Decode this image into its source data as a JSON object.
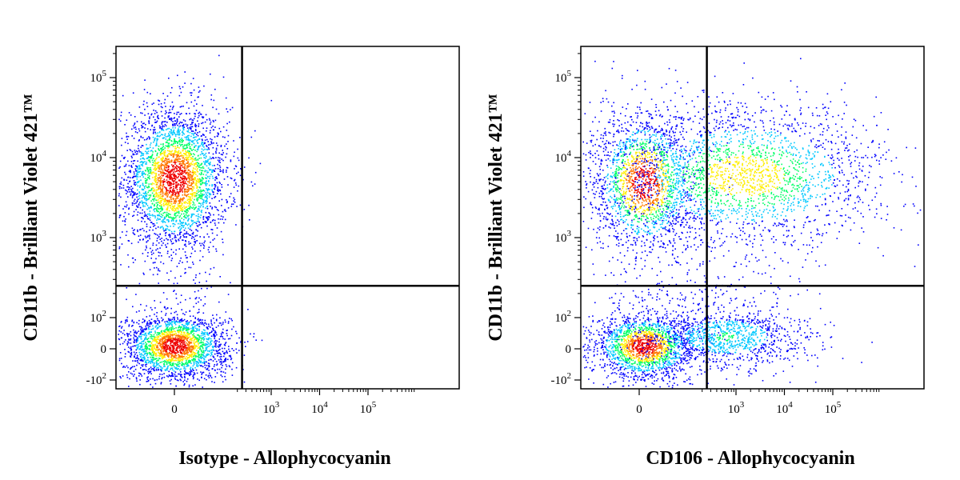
{
  "chart_data": [
    {
      "type": "scatter",
      "xlabel": "Isotype - Allophycocyanin",
      "ylabel": "CD11b - Brilliant Violet 421™",
      "x_scale": "biexponential",
      "y_scale": "biexponential",
      "xlim": [
        -150,
        160000
      ],
      "ylim": [
        -150,
        300000
      ],
      "x_ticks": [
        "0",
        "10^3",
        "10^4",
        "10^5"
      ],
      "y_ticks": [
        "-10^2",
        "0",
        "10^2",
        "10^3",
        "10^4",
        "10^5"
      ],
      "gate": {
        "x": 250,
        "y": 250
      },
      "grid": false,
      "populations": [
        {
          "name": "",
          "x_center": 0,
          "y_center": 5500,
          "count": 3200,
          "density": "high"
        },
        {
          "name": "",
          "x_center": 0,
          "y_center": 10,
          "count": 2400,
          "density": "high"
        }
      ],
      "color_scale": [
        "#0000ff",
        "#00c8ff",
        "#00ff66",
        "#ffee00",
        "#ff7700",
        "#ee0000"
      ]
    },
    {
      "type": "scatter",
      "xlabel": "CD106 - Allophycocyanin",
      "ylabel": "CD11b - Brilliant Violet 421™",
      "x_scale": "biexponential",
      "y_scale": "biexponential",
      "xlim": [
        -150,
        160000
      ],
      "ylim": [
        -150,
        300000
      ],
      "x_ticks": [
        "0",
        "10^3",
        "10^4",
        "10^5"
      ],
      "y_ticks": [
        "-10^2",
        "0",
        "10^2",
        "10^3",
        "10^4",
        "10^5"
      ],
      "gate": {
        "x": 250,
        "y": 250
      },
      "grid": false,
      "populations": [
        {
          "name": "",
          "x_center": 10,
          "y_center": 5000,
          "count": 1800,
          "density": "high"
        },
        {
          "name": "",
          "x_center": 1500,
          "y_center": 6000,
          "count": 2400,
          "density": "medium"
        },
        {
          "name": "",
          "x_center": 10,
          "y_center": 10,
          "count": 1900,
          "density": "high"
        },
        {
          "name": "",
          "x_center": 600,
          "y_center": 40,
          "count": 1200,
          "density": "low"
        }
      ],
      "color_scale": [
        "#0000ff",
        "#00c8ff",
        "#00ff66",
        "#ffee00",
        "#ff7700",
        "#ee0000"
      ]
    }
  ]
}
